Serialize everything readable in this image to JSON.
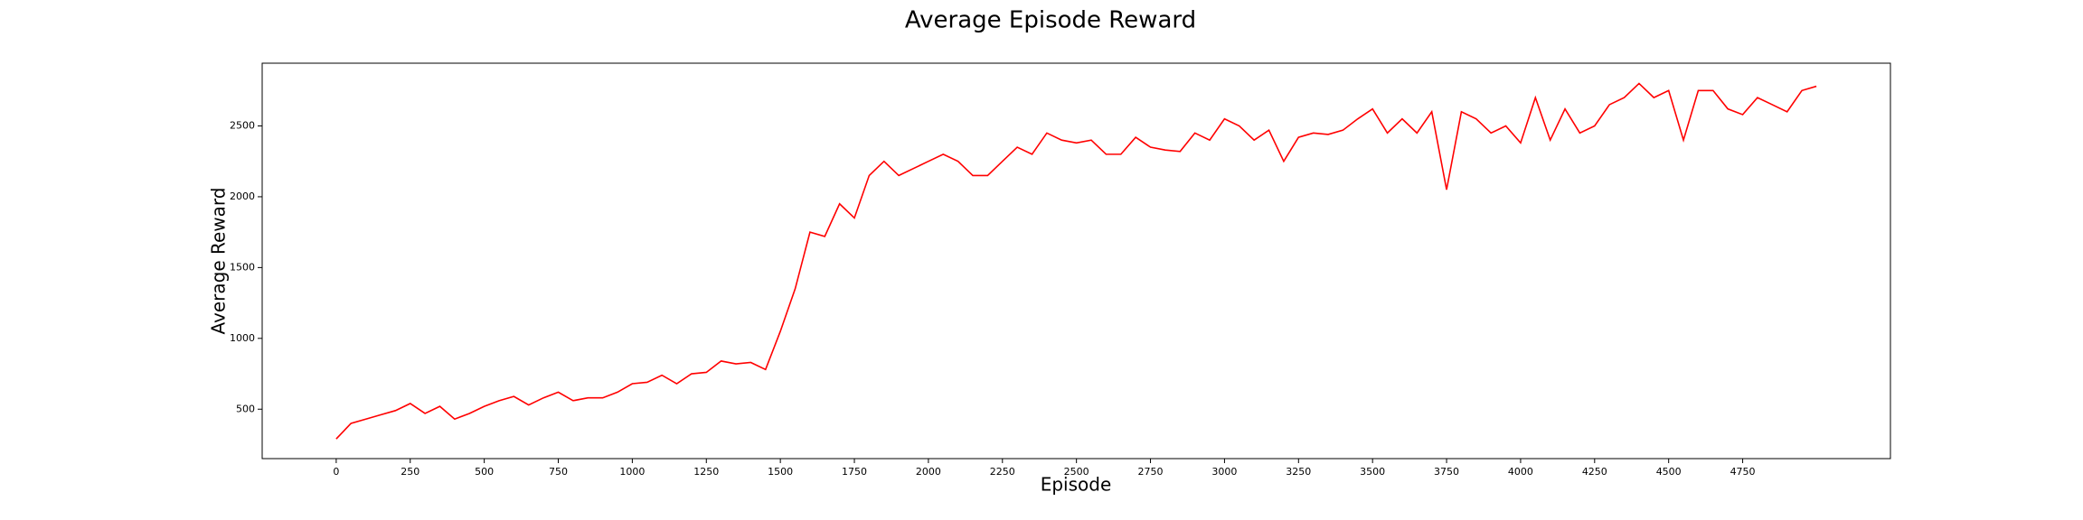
{
  "chart_data": {
    "type": "line",
    "title": "Average Episode Reward",
    "xlabel": "Episode",
    "ylabel": "Average Reward",
    "x": [
      0,
      50,
      100,
      150,
      200,
      250,
      300,
      350,
      400,
      450,
      500,
      550,
      600,
      650,
      700,
      750,
      800,
      850,
      900,
      950,
      1000,
      1050,
      1100,
      1150,
      1200,
      1250,
      1300,
      1350,
      1400,
      1450,
      1500,
      1550,
      1600,
      1650,
      1700,
      1750,
      1800,
      1850,
      1900,
      1950,
      2000,
      2050,
      2100,
      2150,
      2200,
      2250,
      2300,
      2350,
      2400,
      2450,
      2500,
      2550,
      2600,
      2650,
      2700,
      2750,
      2800,
      2850,
      2900,
      2950,
      3000,
      3050,
      3100,
      3150,
      3200,
      3250,
      3300,
      3350,
      3400,
      3450,
      3500,
      3550,
      3600,
      3650,
      3700,
      3750,
      3800,
      3850,
      3900,
      3950,
      4000,
      4050,
      4100,
      4150,
      4200,
      4250,
      4300,
      4350,
      4400,
      4450,
      4500,
      4550,
      4600,
      4650,
      4700,
      4750,
      4800,
      4850,
      4900,
      4950,
      4999
    ],
    "series": [
      {
        "name": "Average Reward",
        "color": "#ff0000",
        "values": [
          290,
          400,
          430,
          460,
          490,
          540,
          470,
          520,
          430,
          470,
          520,
          560,
          590,
          530,
          580,
          620,
          560,
          580,
          580,
          620,
          680,
          690,
          740,
          680,
          750,
          760,
          840,
          820,
          830,
          780,
          1050,
          1350,
          1750,
          1720,
          1950,
          1850,
          2150,
          2250,
          2150,
          2200,
          2250,
          2300,
          2250,
          2150,
          2150,
          2250,
          2350,
          2300,
          2450,
          2400,
          2380,
          2400,
          2300,
          2300,
          2420,
          2350,
          2330,
          2320,
          2450,
          2400,
          2550,
          2500,
          2400,
          2470,
          2250,
          2420,
          2450,
          2440,
          2470,
          2550,
          2620,
          2450,
          2550,
          2450,
          2600,
          2050,
          2600,
          2550,
          2450,
          2500,
          2380,
          2700,
          2400,
          2620,
          2450,
          2500,
          2650,
          2700,
          2800,
          2700,
          2750,
          2400,
          2750,
          2750,
          2620,
          2580,
          2700,
          2650,
          2600,
          2750,
          2780
        ]
      }
    ],
    "xlim": [
      -250,
      5249
    ],
    "ylim": [
      151,
      2943
    ],
    "xticks": [
      0,
      250,
      500,
      750,
      1000,
      1250,
      1500,
      1750,
      2000,
      2250,
      2500,
      2750,
      3000,
      3250,
      3500,
      3750,
      4000,
      4250,
      4500,
      4750
    ],
    "yticks": [
      500,
      1000,
      1500,
      2000,
      2500
    ],
    "grid": false
  }
}
